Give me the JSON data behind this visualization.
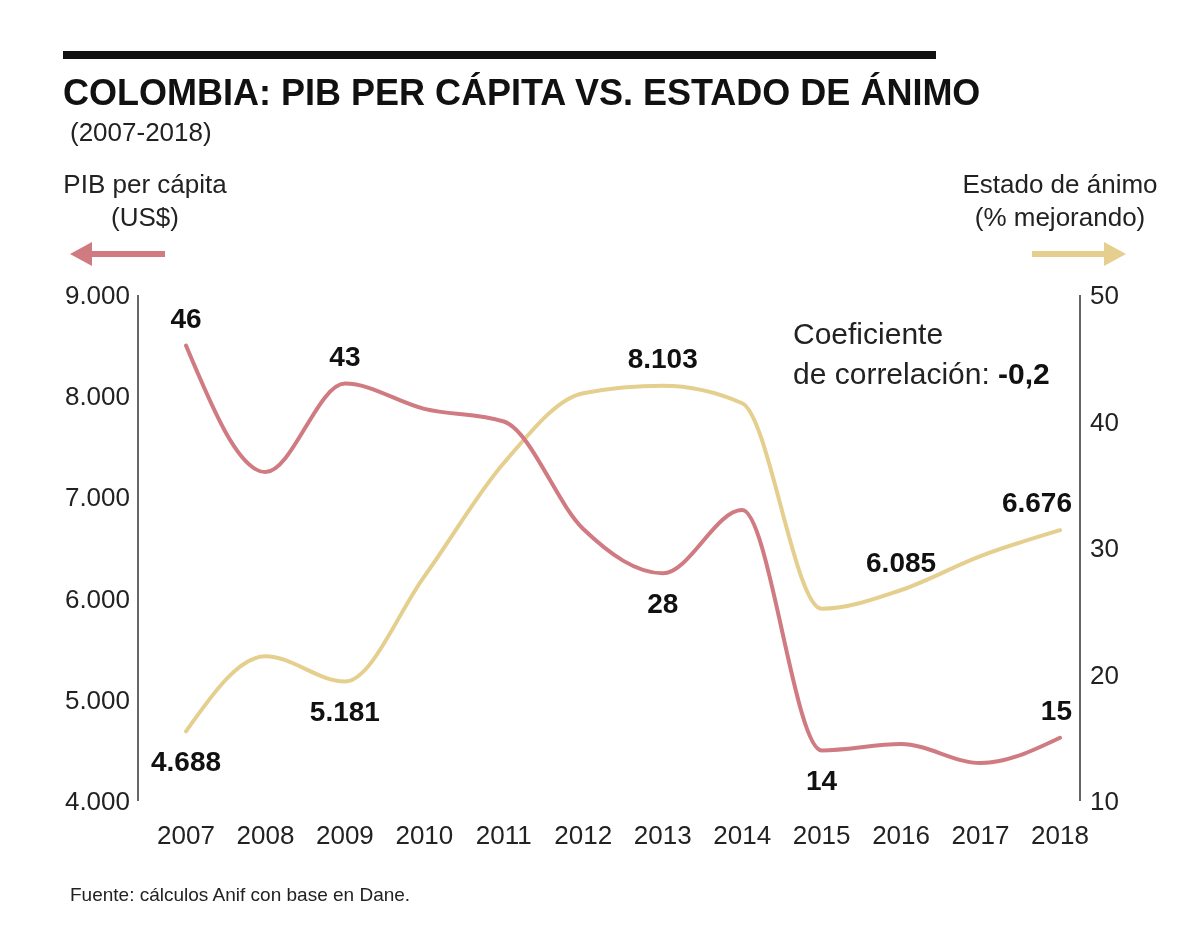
{
  "chart_data": {
    "type": "line",
    "title": "COLOMBIA: PIB PER CÁPITA VS. ESTADO DE ÁNIMO",
    "subtitle": "(2007-2018)",
    "ylabel": "PIB per cápita (US$)",
    "y2label": "Estado de ánimo (% mejorando)",
    "categories": [
      "2007",
      "2008",
      "2009",
      "2010",
      "2011",
      "2012",
      "2013",
      "2014",
      "2015",
      "2016",
      "2017",
      "2018"
    ],
    "series": [
      {
        "color": "#e5cf8e",
        "values": [
          4688,
          5430,
          5181,
          6220,
          7340,
          8030,
          8103,
          7930,
          5900,
          6085,
          6420,
          6676
        ],
        "value_labels": [
          "4.688",
          null,
          "5.181",
          null,
          null,
          null,
          "8.103",
          null,
          null,
          "6.085",
          null,
          "6.676"
        ]
      },
      {
        "color": "#d07a82",
        "axis": "y2",
        "values": [
          46,
          36,
          43,
          41,
          40,
          31.5,
          28,
          33,
          14,
          14.5,
          13,
          15
        ],
        "value_labels": [
          "46",
          null,
          "43",
          null,
          null,
          null,
          "28",
          null,
          "14",
          null,
          null,
          "15"
        ]
      }
    ],
    "ylim": [
      4000,
      9000
    ],
    "yticks": [
      {
        "value": 4000,
        "label": "4.000"
      },
      {
        "value": 5000,
        "label": "5.000"
      },
      {
        "value": 6000,
        "label": "6.000"
      },
      {
        "value": 7000,
        "label": "7.000"
      },
      {
        "value": 8000,
        "label": "8.000"
      },
      {
        "value": 9000,
        "label": "9.000"
      }
    ],
    "y2lim": [
      10,
      50
    ],
    "y2ticks": [
      10,
      20,
      30,
      40,
      50
    ],
    "grid": false,
    "marker": "none",
    "line_style": "solid",
    "annotations": [
      "Coeficiente de correlación: -0,2",
      "Fuente: cálculos Anif con base en Dane."
    ]
  }
}
